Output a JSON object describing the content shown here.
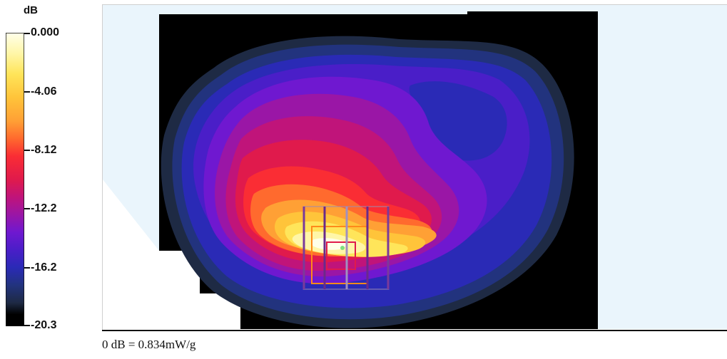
{
  "chart_data": {
    "type": "heatmap",
    "title": "",
    "colorbar": {
      "unit": "dB",
      "range": [
        -20.3,
        0.0
      ],
      "ticks": [
        "0.000",
        "-4.06",
        "-8.12",
        "-12.2",
        "-16.2",
        "-20.3"
      ],
      "tick_values": [
        0.0,
        -4.06,
        -8.12,
        -12.2,
        -16.2,
        -20.3
      ],
      "colors": [
        "#ffffea",
        "#fff6a8",
        "#ffe55a",
        "#ffc43a",
        "#ffa035",
        "#ff6a2e",
        "#fa2d34",
        "#e01a4c",
        "#c0147a",
        "#9a16a6",
        "#6f18d0",
        "#4a1ec8",
        "#2a2ab6",
        "#22337e",
        "#1e2a44",
        "#000000"
      ]
    },
    "reference_level": "0 dB = 0.834mW/g",
    "peak_value_db": 0.0,
    "peak_location": "lower-center of scan area",
    "background_color": "#eaf5fc"
  }
}
